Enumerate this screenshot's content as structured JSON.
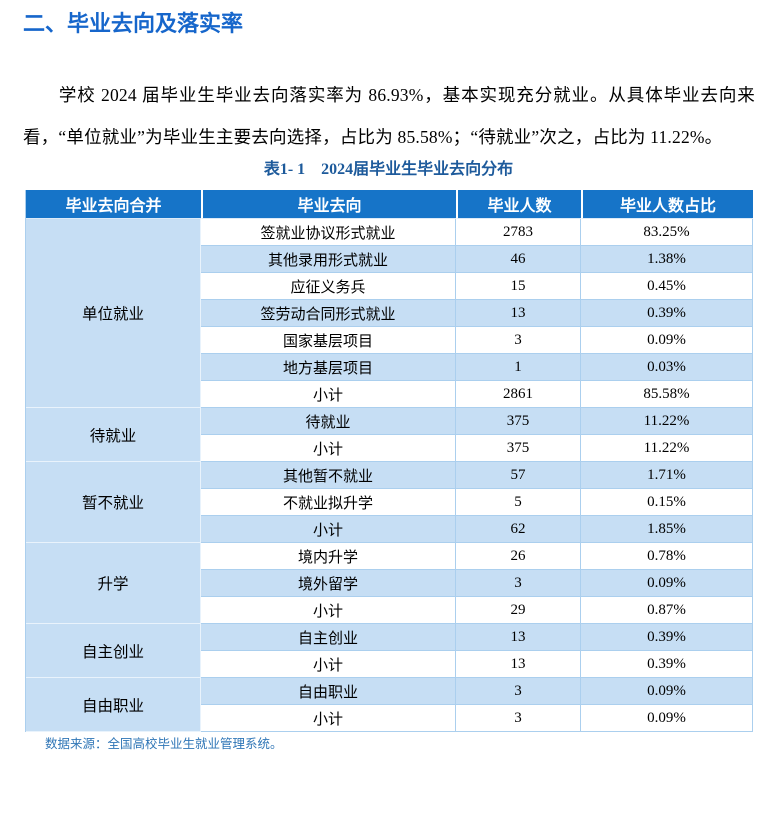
{
  "page": {
    "heading": "二、毕业去向及落实率",
    "paragraph": "学校 2024 届毕业生毕业去向落实率为 86.93%，基本实现充分就业。从具体毕业去向来看，“单位就业”为毕业生主要去向选择，占比为 85.58%；“待就业”次之，占比为 11.22%。",
    "table_caption": "表1- 1　2024届毕业生毕业去向分布",
    "source_note": "数据来源：全国高校毕业生就业管理系统。"
  },
  "colors": {
    "heading_text": "#1666CB",
    "caption_text": "#1D5A9B",
    "header_bg": "#1674C8",
    "header_text": "#FFFFFF",
    "stripe_bg": "#C6DEF4",
    "grid_border": "#ABCFEE",
    "note_text": "#2E75B6"
  },
  "table": {
    "columns": [
      "毕业去向合并",
      "毕业去向",
      "毕业人数",
      "毕业人数占比"
    ],
    "groups": [
      {
        "label": "单位就业",
        "rows": [
          [
            "签就业协议形式就业",
            "2783",
            "83.25%"
          ],
          [
            "其他录用形式就业",
            "46",
            "1.38%"
          ],
          [
            "应征义务兵",
            "15",
            "0.45%"
          ],
          [
            "签劳动合同形式就业",
            "13",
            "0.39%"
          ],
          [
            "国家基层项目",
            "3",
            "0.09%"
          ],
          [
            "地方基层项目",
            "1",
            "0.03%"
          ],
          [
            "小计",
            "2861",
            "85.58%"
          ]
        ]
      },
      {
        "label": "待就业",
        "rows": [
          [
            "待就业",
            "375",
            "11.22%"
          ],
          [
            "小计",
            "375",
            "11.22%"
          ]
        ]
      },
      {
        "label": "暂不就业",
        "rows": [
          [
            "其他暂不就业",
            "57",
            "1.71%"
          ],
          [
            "不就业拟升学",
            "5",
            "0.15%"
          ],
          [
            "小计",
            "62",
            "1.85%"
          ]
        ]
      },
      {
        "label": "升学",
        "rows": [
          [
            "境内升学",
            "26",
            "0.78%"
          ],
          [
            "境外留学",
            "3",
            "0.09%"
          ],
          [
            "小计",
            "29",
            "0.87%"
          ]
        ]
      },
      {
        "label": "自主创业",
        "rows": [
          [
            "自主创业",
            "13",
            "0.39%"
          ],
          [
            "小计",
            "13",
            "0.39%"
          ]
        ]
      },
      {
        "label": "自由职业",
        "rows": [
          [
            "自由职业",
            "3",
            "0.09%"
          ],
          [
            "小计",
            "3",
            "0.09%"
          ]
        ]
      }
    ]
  }
}
